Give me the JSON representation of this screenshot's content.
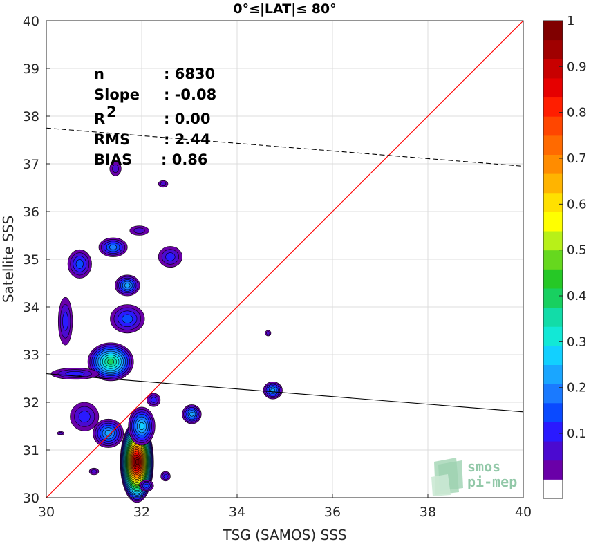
{
  "chart_data": {
    "type": "heatmap",
    "title": "0°≤|LAT|≤ 80°",
    "xlabel": "TSG (SAMOS) SSS",
    "ylabel": "Satellite SSS",
    "xlim": [
      30,
      40
    ],
    "ylim": [
      30,
      40
    ],
    "xticks": [
      "30",
      "32",
      "34",
      "36",
      "38",
      "40"
    ],
    "yticks": [
      "30",
      "31",
      "32",
      "33",
      "34",
      "35",
      "36",
      "37",
      "38",
      "39",
      "40"
    ],
    "grid": true,
    "stats": [
      {
        "label": "n",
        "value": ": 6830"
      },
      {
        "label": "Slope",
        "value": ": -0.08"
      },
      {
        "label": "R",
        "sup": "2",
        "value": ": 0.00"
      },
      {
        "label": "RMS",
        "value": ": 2.44"
      },
      {
        "label": "BIAS",
        "value": ": 0.86"
      }
    ],
    "lines": [
      {
        "name": "identity",
        "color": "#ff0000",
        "style": "solid",
        "x": [
          30,
          40
        ],
        "y": [
          30,
          40
        ]
      },
      {
        "name": "fit",
        "color": "#000000",
        "style": "solid",
        "x": [
          30,
          40
        ],
        "y": [
          32.6,
          31.8
        ]
      },
      {
        "name": "offset",
        "color": "#000000",
        "style": "dashed",
        "x": [
          30,
          40
        ],
        "y": [
          37.75,
          36.95
        ]
      }
    ],
    "density_blobs": [
      {
        "x": 31.9,
        "y": 30.75,
        "rx": 0.35,
        "ry": 0.85,
        "peak": 1.0
      },
      {
        "x": 32.0,
        "y": 31.5,
        "rx": 0.28,
        "ry": 0.4,
        "peak": 0.3
      },
      {
        "x": 31.3,
        "y": 31.35,
        "rx": 0.32,
        "ry": 0.3,
        "peak": 0.25
      },
      {
        "x": 30.8,
        "y": 31.7,
        "rx": 0.3,
        "ry": 0.3,
        "peak": 0.12
      },
      {
        "x": 31.35,
        "y": 32.85,
        "rx": 0.48,
        "ry": 0.4,
        "peak": 0.4
      },
      {
        "x": 30.6,
        "y": 32.6,
        "rx": 0.5,
        "ry": 0.12,
        "peak": 0.12
      },
      {
        "x": 31.7,
        "y": 33.75,
        "rx": 0.36,
        "ry": 0.3,
        "peak": 0.18
      },
      {
        "x": 30.4,
        "y": 33.7,
        "rx": 0.15,
        "ry": 0.5,
        "peak": 0.12
      },
      {
        "x": 31.7,
        "y": 34.45,
        "rx": 0.26,
        "ry": 0.22,
        "peak": 0.25
      },
      {
        "x": 30.7,
        "y": 34.9,
        "rx": 0.25,
        "ry": 0.3,
        "peak": 0.15
      },
      {
        "x": 31.4,
        "y": 35.25,
        "rx": 0.3,
        "ry": 0.2,
        "peak": 0.2
      },
      {
        "x": 32.6,
        "y": 35.05,
        "rx": 0.25,
        "ry": 0.22,
        "peak": 0.12
      },
      {
        "x": 31.95,
        "y": 35.6,
        "rx": 0.2,
        "ry": 0.1,
        "peak": 0.1
      },
      {
        "x": 31.45,
        "y": 36.9,
        "rx": 0.12,
        "ry": 0.15,
        "peak": 0.1
      },
      {
        "x": 32.45,
        "y": 36.58,
        "rx": 0.1,
        "ry": 0.07,
        "peak": 0.1
      },
      {
        "x": 32.25,
        "y": 32.05,
        "rx": 0.14,
        "ry": 0.14,
        "peak": 0.12
      },
      {
        "x": 33.05,
        "y": 31.75,
        "rx": 0.2,
        "ry": 0.2,
        "peak": 0.25
      },
      {
        "x": 34.75,
        "y": 32.25,
        "rx": 0.2,
        "ry": 0.18,
        "peak": 0.25
      },
      {
        "x": 34.65,
        "y": 33.45,
        "rx": 0.06,
        "ry": 0.06,
        "peak": 0.1
      },
      {
        "x": 32.1,
        "y": 30.25,
        "rx": 0.15,
        "ry": 0.12,
        "peak": 0.15
      },
      {
        "x": 32.5,
        "y": 30.45,
        "rx": 0.1,
        "ry": 0.1,
        "peak": 0.12
      },
      {
        "x": 31.0,
        "y": 30.55,
        "rx": 0.1,
        "ry": 0.07,
        "peak": 0.1
      },
      {
        "x": 30.3,
        "y": 31.35,
        "rx": 0.07,
        "ry": 0.04,
        "peak": 0.1
      }
    ],
    "colorbar": {
      "ticks": [
        "0.1",
        "0.2",
        "0.3",
        "0.4",
        "0.5",
        "0.6",
        "0.7",
        "0.8",
        "0.9",
        "1"
      ],
      "colors": [
        "#ffffff",
        "#6a00a8",
        "#4b0ad0",
        "#2a1aff",
        "#0a4aff",
        "#1a7aff",
        "#1aa6ff",
        "#12d0ff",
        "#12e8d6",
        "#12dca8",
        "#18d060",
        "#26c826",
        "#66d81e",
        "#b8f018",
        "#ffff00",
        "#ffe000",
        "#ffb400",
        "#ff8c00",
        "#ff6a00",
        "#ff4600",
        "#ff1e00",
        "#e60000",
        "#c80000",
        "#a00000",
        "#800000"
      ]
    },
    "watermark": {
      "line1": "smos",
      "line2": "pi-mep"
    }
  }
}
